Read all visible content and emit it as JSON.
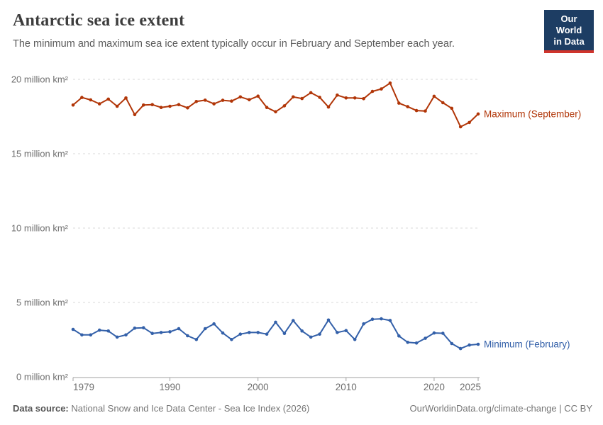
{
  "header": {
    "title": "Antarctic sea ice extent",
    "subtitle": "The minimum and maximum sea ice extent typically occur in February and September each year.",
    "logo_line1": "Our World",
    "logo_line2": "in Data"
  },
  "footer": {
    "source_label": "Data source:",
    "source_text": " National Snow and Ice Data Center - Sea Ice Index (2026)",
    "link": "OurWorldinData.org/climate-change",
    "license": " | CC BY"
  },
  "chart_data": {
    "type": "line",
    "title": "Antarctic sea ice extent",
    "xlabel": "",
    "ylabel": "million km²",
    "ylim": [
      0,
      20
    ],
    "grid": "horizontal-dashed",
    "legend_position": "right-of-line-end-labels",
    "yticks": [
      {
        "value": 0,
        "label": "0 million km²"
      },
      {
        "value": 5,
        "label": "5 million km²"
      },
      {
        "value": 10,
        "label": "10 million km²"
      },
      {
        "value": 15,
        "label": "15 million km²"
      },
      {
        "value": 20,
        "label": "20 million km²"
      }
    ],
    "xticks": [
      1979,
      1990,
      2000,
      2010,
      2020,
      2025
    ],
    "x": [
      1979,
      1980,
      1981,
      1982,
      1983,
      1984,
      1985,
      1986,
      1987,
      1988,
      1989,
      1990,
      1991,
      1992,
      1993,
      1994,
      1995,
      1996,
      1997,
      1998,
      1999,
      2000,
      2001,
      2002,
      2003,
      2004,
      2005,
      2006,
      2007,
      2008,
      2009,
      2010,
      2011,
      2012,
      2013,
      2014,
      2015,
      2016,
      2017,
      2018,
      2019,
      2020,
      2021,
      2022,
      2023,
      2024,
      2025
    ],
    "series": [
      {
        "name": "Maximum (September)",
        "color": "#b13507",
        "values": [
          18.27,
          18.78,
          18.62,
          18.35,
          18.67,
          18.19,
          18.75,
          17.63,
          18.27,
          18.3,
          18.11,
          18.19,
          18.3,
          18.08,
          18.51,
          18.6,
          18.35,
          18.59,
          18.54,
          18.82,
          18.63,
          18.87,
          18.11,
          17.82,
          18.22,
          18.82,
          18.71,
          19.1,
          18.79,
          18.14,
          18.94,
          18.75,
          18.75,
          18.7,
          19.19,
          19.35,
          19.75,
          18.4,
          18.16,
          17.9,
          17.87,
          18.86,
          18.43,
          18.05,
          16.81,
          17.1,
          17.67
        ]
      },
      {
        "name": "Minimum (February)",
        "color": "#3360a9",
        "values": [
          3.19,
          2.82,
          2.82,
          3.14,
          3.08,
          2.67,
          2.82,
          3.27,
          3.3,
          2.92,
          2.98,
          3.03,
          3.24,
          2.76,
          2.51,
          3.24,
          3.56,
          2.95,
          2.51,
          2.87,
          2.98,
          2.98,
          2.87,
          3.67,
          2.92,
          3.78,
          3.08,
          2.67,
          2.87,
          3.82,
          2.98,
          3.11,
          2.51,
          3.56,
          3.87,
          3.9,
          3.79,
          2.75,
          2.32,
          2.27,
          2.59,
          2.95,
          2.93,
          2.24,
          1.9,
          2.14,
          2.19
        ]
      }
    ]
  }
}
